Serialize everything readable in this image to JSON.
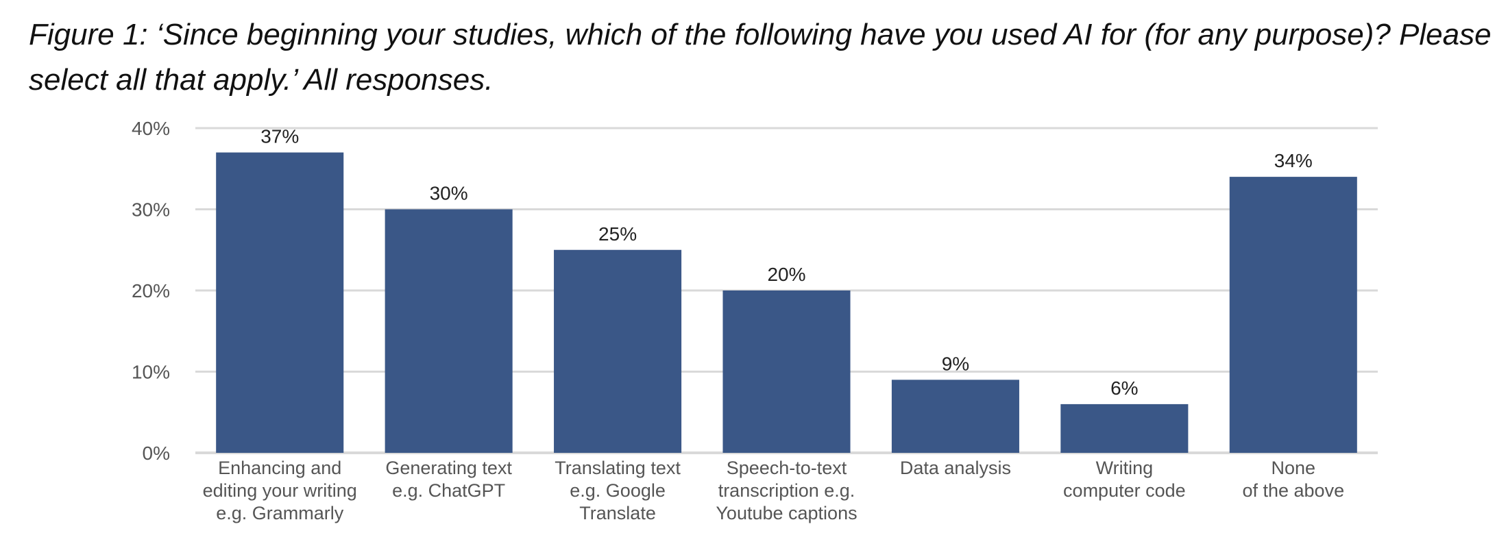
{
  "figure_title": "Figure 1: ‘Since beginning your studies, which of the following have you used AI for (for any purpose)? Please select all that apply.’ All responses.",
  "colors": {
    "bar": "#3a5787",
    "grid": "#d9d9d9",
    "axis_text": "#555555",
    "label_text": "#222222"
  },
  "chart_data": {
    "type": "bar",
    "categories": [
      [
        "Enhancing and",
        "editing your writing",
        "e.g. Grammarly"
      ],
      [
        "Generating text",
        "e.g. ChatGPT"
      ],
      [
        "Translating text",
        "e.g. Google",
        "Translate"
      ],
      [
        "Speech-to-text",
        "transcription e.g.",
        "Youtube captions"
      ],
      [
        "Data analysis"
      ],
      [
        "Writing",
        "computer code"
      ],
      [
        "None",
        "of the above"
      ]
    ],
    "values": [
      37,
      30,
      25,
      20,
      9,
      6,
      34
    ],
    "data_labels": [
      "37%",
      "30%",
      "25%",
      "20%",
      "9%",
      "6%",
      "34%"
    ],
    "ylim": [
      0,
      40
    ],
    "yticks": [
      0,
      10,
      20,
      30,
      40
    ],
    "ytick_labels": [
      "0%",
      "10%",
      "20%",
      "30%",
      "40%"
    ],
    "grid": true,
    "legend": false
  }
}
